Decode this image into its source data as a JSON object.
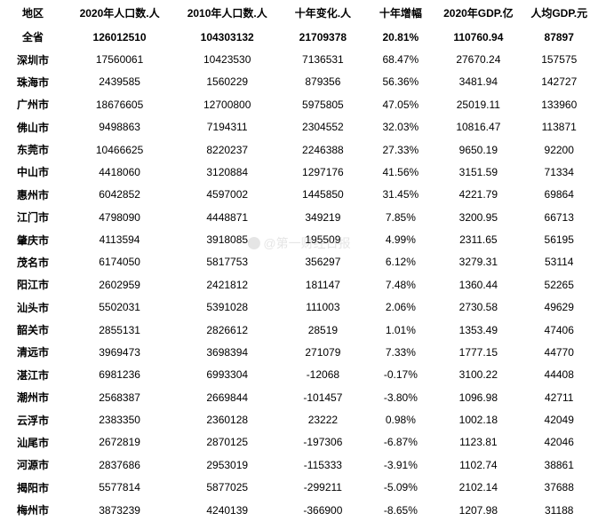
{
  "table": {
    "columns": [
      "地区",
      "2020年人口数.人",
      "2010年人口数.人",
      "十年变化.人",
      "十年增幅",
      "2020年GDP.亿",
      "人均GDP.元"
    ],
    "col_widths": [
      "11%",
      "18%",
      "18%",
      "14%",
      "12%",
      "14%",
      "13%"
    ],
    "header_fontsize": 12,
    "cell_fontsize": 12,
    "background_color": "#ffffff",
    "text_color": "#000000",
    "rows": [
      [
        "全省",
        "126012510",
        "104303132",
        "21709378",
        "20.81%",
        "110760.94",
        "87897"
      ],
      [
        "深圳市",
        "17560061",
        "10423530",
        "7136531",
        "68.47%",
        "27670.24",
        "157575"
      ],
      [
        "珠海市",
        "2439585",
        "1560229",
        "879356",
        "56.36%",
        "3481.94",
        "142727"
      ],
      [
        "广州市",
        "18676605",
        "12700800",
        "5975805",
        "47.05%",
        "25019.11",
        "133960"
      ],
      [
        "佛山市",
        "9498863",
        "7194311",
        "2304552",
        "32.03%",
        "10816.47",
        "113871"
      ],
      [
        "东莞市",
        "10466625",
        "8220237",
        "2246388",
        "27.33%",
        "9650.19",
        "92200"
      ],
      [
        "中山市",
        "4418060",
        "3120884",
        "1297176",
        "41.56%",
        "3151.59",
        "71334"
      ],
      [
        "惠州市",
        "6042852",
        "4597002",
        "1445850",
        "31.45%",
        "4221.79",
        "69864"
      ],
      [
        "江门市",
        "4798090",
        "4448871",
        "349219",
        "7.85%",
        "3200.95",
        "66713"
      ],
      [
        "肇庆市",
        "4113594",
        "3918085",
        "195509",
        "4.99%",
        "2311.65",
        "56195"
      ],
      [
        "茂名市",
        "6174050",
        "5817753",
        "356297",
        "6.12%",
        "3279.31",
        "53114"
      ],
      [
        "阳江市",
        "2602959",
        "2421812",
        "181147",
        "7.48%",
        "1360.44",
        "52265"
      ],
      [
        "汕头市",
        "5502031",
        "5391028",
        "111003",
        "2.06%",
        "2730.58",
        "49629"
      ],
      [
        "韶关市",
        "2855131",
        "2826612",
        "28519",
        "1.01%",
        "1353.49",
        "47406"
      ],
      [
        "清远市",
        "3969473",
        "3698394",
        "271079",
        "7.33%",
        "1777.15",
        "44770"
      ],
      [
        "湛江市",
        "6981236",
        "6993304",
        "-12068",
        "-0.17%",
        "3100.22",
        "44408"
      ],
      [
        "潮州市",
        "2568387",
        "2669844",
        "-101457",
        "-3.80%",
        "1096.98",
        "42711"
      ],
      [
        "云浮市",
        "2383350",
        "2360128",
        "23222",
        "0.98%",
        "1002.18",
        "42049"
      ],
      [
        "汕尾市",
        "2672819",
        "2870125",
        "-197306",
        "-6.87%",
        "1123.81",
        "42046"
      ],
      [
        "河源市",
        "2837686",
        "2953019",
        "-115333",
        "-3.91%",
        "1102.74",
        "38861"
      ],
      [
        "揭阳市",
        "5577814",
        "5877025",
        "-299211",
        "-5.09%",
        "2102.14",
        "37688"
      ],
      [
        "梅州市",
        "3873239",
        "4240139",
        "-366900",
        "-8.65%",
        "1207.98",
        "31188"
      ]
    ]
  },
  "watermark": {
    "text": "@第一财经日报"
  }
}
